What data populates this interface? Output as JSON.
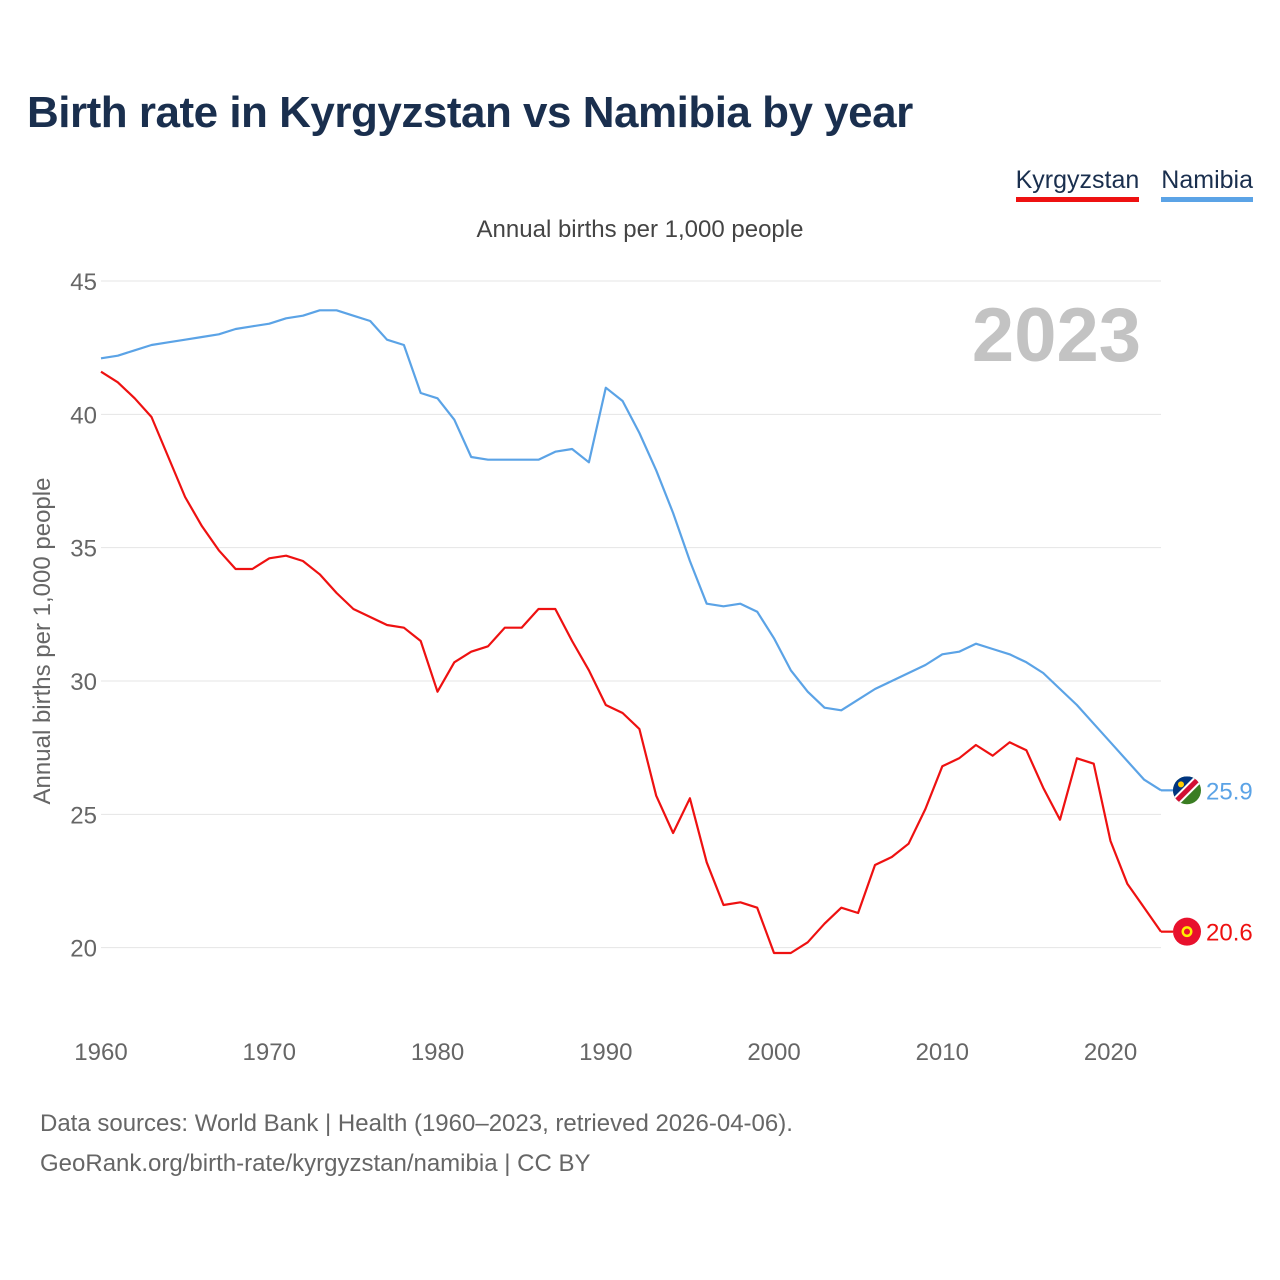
{
  "title": "Birth rate in Kyrgyzstan vs Namibia by year",
  "legend": [
    {
      "name": "Kyrgyzstan",
      "color": "#ee1111"
    },
    {
      "name": "Namibia",
      "color": "#5ba3e6"
    }
  ],
  "footer": {
    "line1": "Data sources: World Bank | Health (1960–2023, retrieved 2026-04-06).",
    "line2": "GeoRank.org/birth-rate/kyrgyzstan/namibia | CC BY"
  },
  "chart_data": {
    "type": "line",
    "title": "Birth rate in Kyrgyzstan vs Namibia by year",
    "subtitle": "Annual births per 1,000 people",
    "ylabel": "Annual births per 1,000 people",
    "xlabel": "",
    "watermark_year": "2023",
    "xlim": [
      1960,
      2023
    ],
    "ylim": [
      18,
      45
    ],
    "x_ticks": [
      1960,
      1970,
      1980,
      1990,
      2000,
      2010,
      2020
    ],
    "y_ticks": [
      20,
      25,
      30,
      35,
      40,
      45
    ],
    "grid": true,
    "legend_position": "top-right",
    "x": [
      1960,
      1961,
      1962,
      1963,
      1964,
      1965,
      1966,
      1967,
      1968,
      1969,
      1970,
      1971,
      1972,
      1973,
      1974,
      1975,
      1976,
      1977,
      1978,
      1979,
      1980,
      1981,
      1982,
      1983,
      1984,
      1985,
      1986,
      1987,
      1988,
      1989,
      1990,
      1991,
      1992,
      1993,
      1994,
      1995,
      1996,
      1997,
      1998,
      1999,
      2000,
      2001,
      2002,
      2003,
      2004,
      2005,
      2006,
      2007,
      2008,
      2009,
      2010,
      2011,
      2012,
      2013,
      2014,
      2015,
      2016,
      2017,
      2018,
      2019,
      2020,
      2021,
      2022,
      2023
    ],
    "series": [
      {
        "name": "Kyrgyzstan",
        "color": "#ee1111",
        "end_label": "20.6",
        "values": [
          41.6,
          41.2,
          40.6,
          39.9,
          38.4,
          36.9,
          35.8,
          34.9,
          34.2,
          34.2,
          34.6,
          34.7,
          34.5,
          34.0,
          33.3,
          32.7,
          32.4,
          32.1,
          32.0,
          31.5,
          29.6,
          30.7,
          31.1,
          31.3,
          32.0,
          32.0,
          32.7,
          32.7,
          31.5,
          30.4,
          29.1,
          28.8,
          28.2,
          25.7,
          24.3,
          25.6,
          23.2,
          21.6,
          21.7,
          21.5,
          19.8,
          19.8,
          20.2,
          20.9,
          21.5,
          21.3,
          23.1,
          23.4,
          23.9,
          25.2,
          26.8,
          27.1,
          27.6,
          27.2,
          27.7,
          27.4,
          26.0,
          24.8,
          27.1,
          26.9,
          24.0,
          22.4,
          21.5,
          20.6
        ]
      },
      {
        "name": "Namibia",
        "color": "#5ba3e6",
        "end_label": "25.9",
        "values": [
          42.1,
          42.2,
          42.4,
          42.6,
          42.7,
          42.8,
          42.9,
          43.0,
          43.2,
          43.3,
          43.4,
          43.6,
          43.7,
          43.9,
          43.9,
          43.7,
          43.5,
          42.8,
          42.6,
          40.8,
          40.6,
          39.8,
          38.4,
          38.3,
          38.3,
          38.3,
          38.3,
          38.6,
          38.7,
          38.2,
          41.0,
          40.5,
          39.3,
          37.9,
          36.3,
          34.5,
          32.9,
          32.8,
          32.9,
          32.6,
          31.6,
          30.4,
          29.6,
          29.0,
          28.9,
          29.3,
          29.7,
          30.0,
          30.3,
          30.6,
          31.0,
          31.1,
          31.4,
          31.2,
          31.0,
          30.7,
          30.3,
          29.7,
          29.1,
          28.4,
          27.7,
          27.0,
          26.3,
          25.9
        ]
      }
    ]
  }
}
